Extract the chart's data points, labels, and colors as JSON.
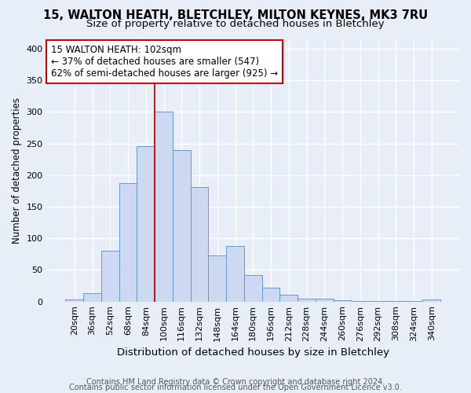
{
  "title1": "15, WALTON HEATH, BLETCHLEY, MILTON KEYNES, MK3 7RU",
  "title2": "Size of property relative to detached houses in Bletchley",
  "xlabel": "Distribution of detached houses by size in Bletchley",
  "ylabel": "Number of detached properties",
  "bar_color": "#ccd9f0",
  "bar_edge_color": "#6699cc",
  "categories": [
    "20sqm",
    "36sqm",
    "52sqm",
    "68sqm",
    "84sqm",
    "100sqm",
    "116sqm",
    "132sqm",
    "148sqm",
    "164sqm",
    "180sqm",
    "196sqm",
    "212sqm",
    "228sqm",
    "244sqm",
    "260sqm",
    "276sqm",
    "292sqm",
    "308sqm",
    "324sqm",
    "340sqm"
  ],
  "values": [
    3,
    13,
    80,
    187,
    246,
    301,
    240,
    181,
    73,
    88,
    42,
    22,
    11,
    5,
    4,
    2,
    1,
    1,
    1,
    1,
    3
  ],
  "ylim": [
    0,
    415
  ],
  "yticks": [
    0,
    50,
    100,
    150,
    200,
    250,
    300,
    350,
    400
  ],
  "property_line_x": 4.5,
  "annotation_line1": "15 WALTON HEATH: 102sqm",
  "annotation_line2": "← 37% of detached houses are smaller (547)",
  "annotation_line3": "62% of semi-detached houses are larger (925) →",
  "annotation_box_color": "white",
  "annotation_box_edge_color": "#cc0000",
  "vline_color": "#cc0000",
  "footer1": "Contains HM Land Registry data © Crown copyright and database right 2024.",
  "footer2": "Contains public sector information licensed under the Open Government Licence v3.0.",
  "background_color": "#e8eef8",
  "grid_color": "white",
  "title_fontsize": 10.5,
  "subtitle_fontsize": 9.5,
  "ylabel_fontsize": 8.5,
  "xlabel_fontsize": 9.5,
  "tick_fontsize": 8,
  "annotation_fontsize": 8.5,
  "footer_fontsize": 7
}
